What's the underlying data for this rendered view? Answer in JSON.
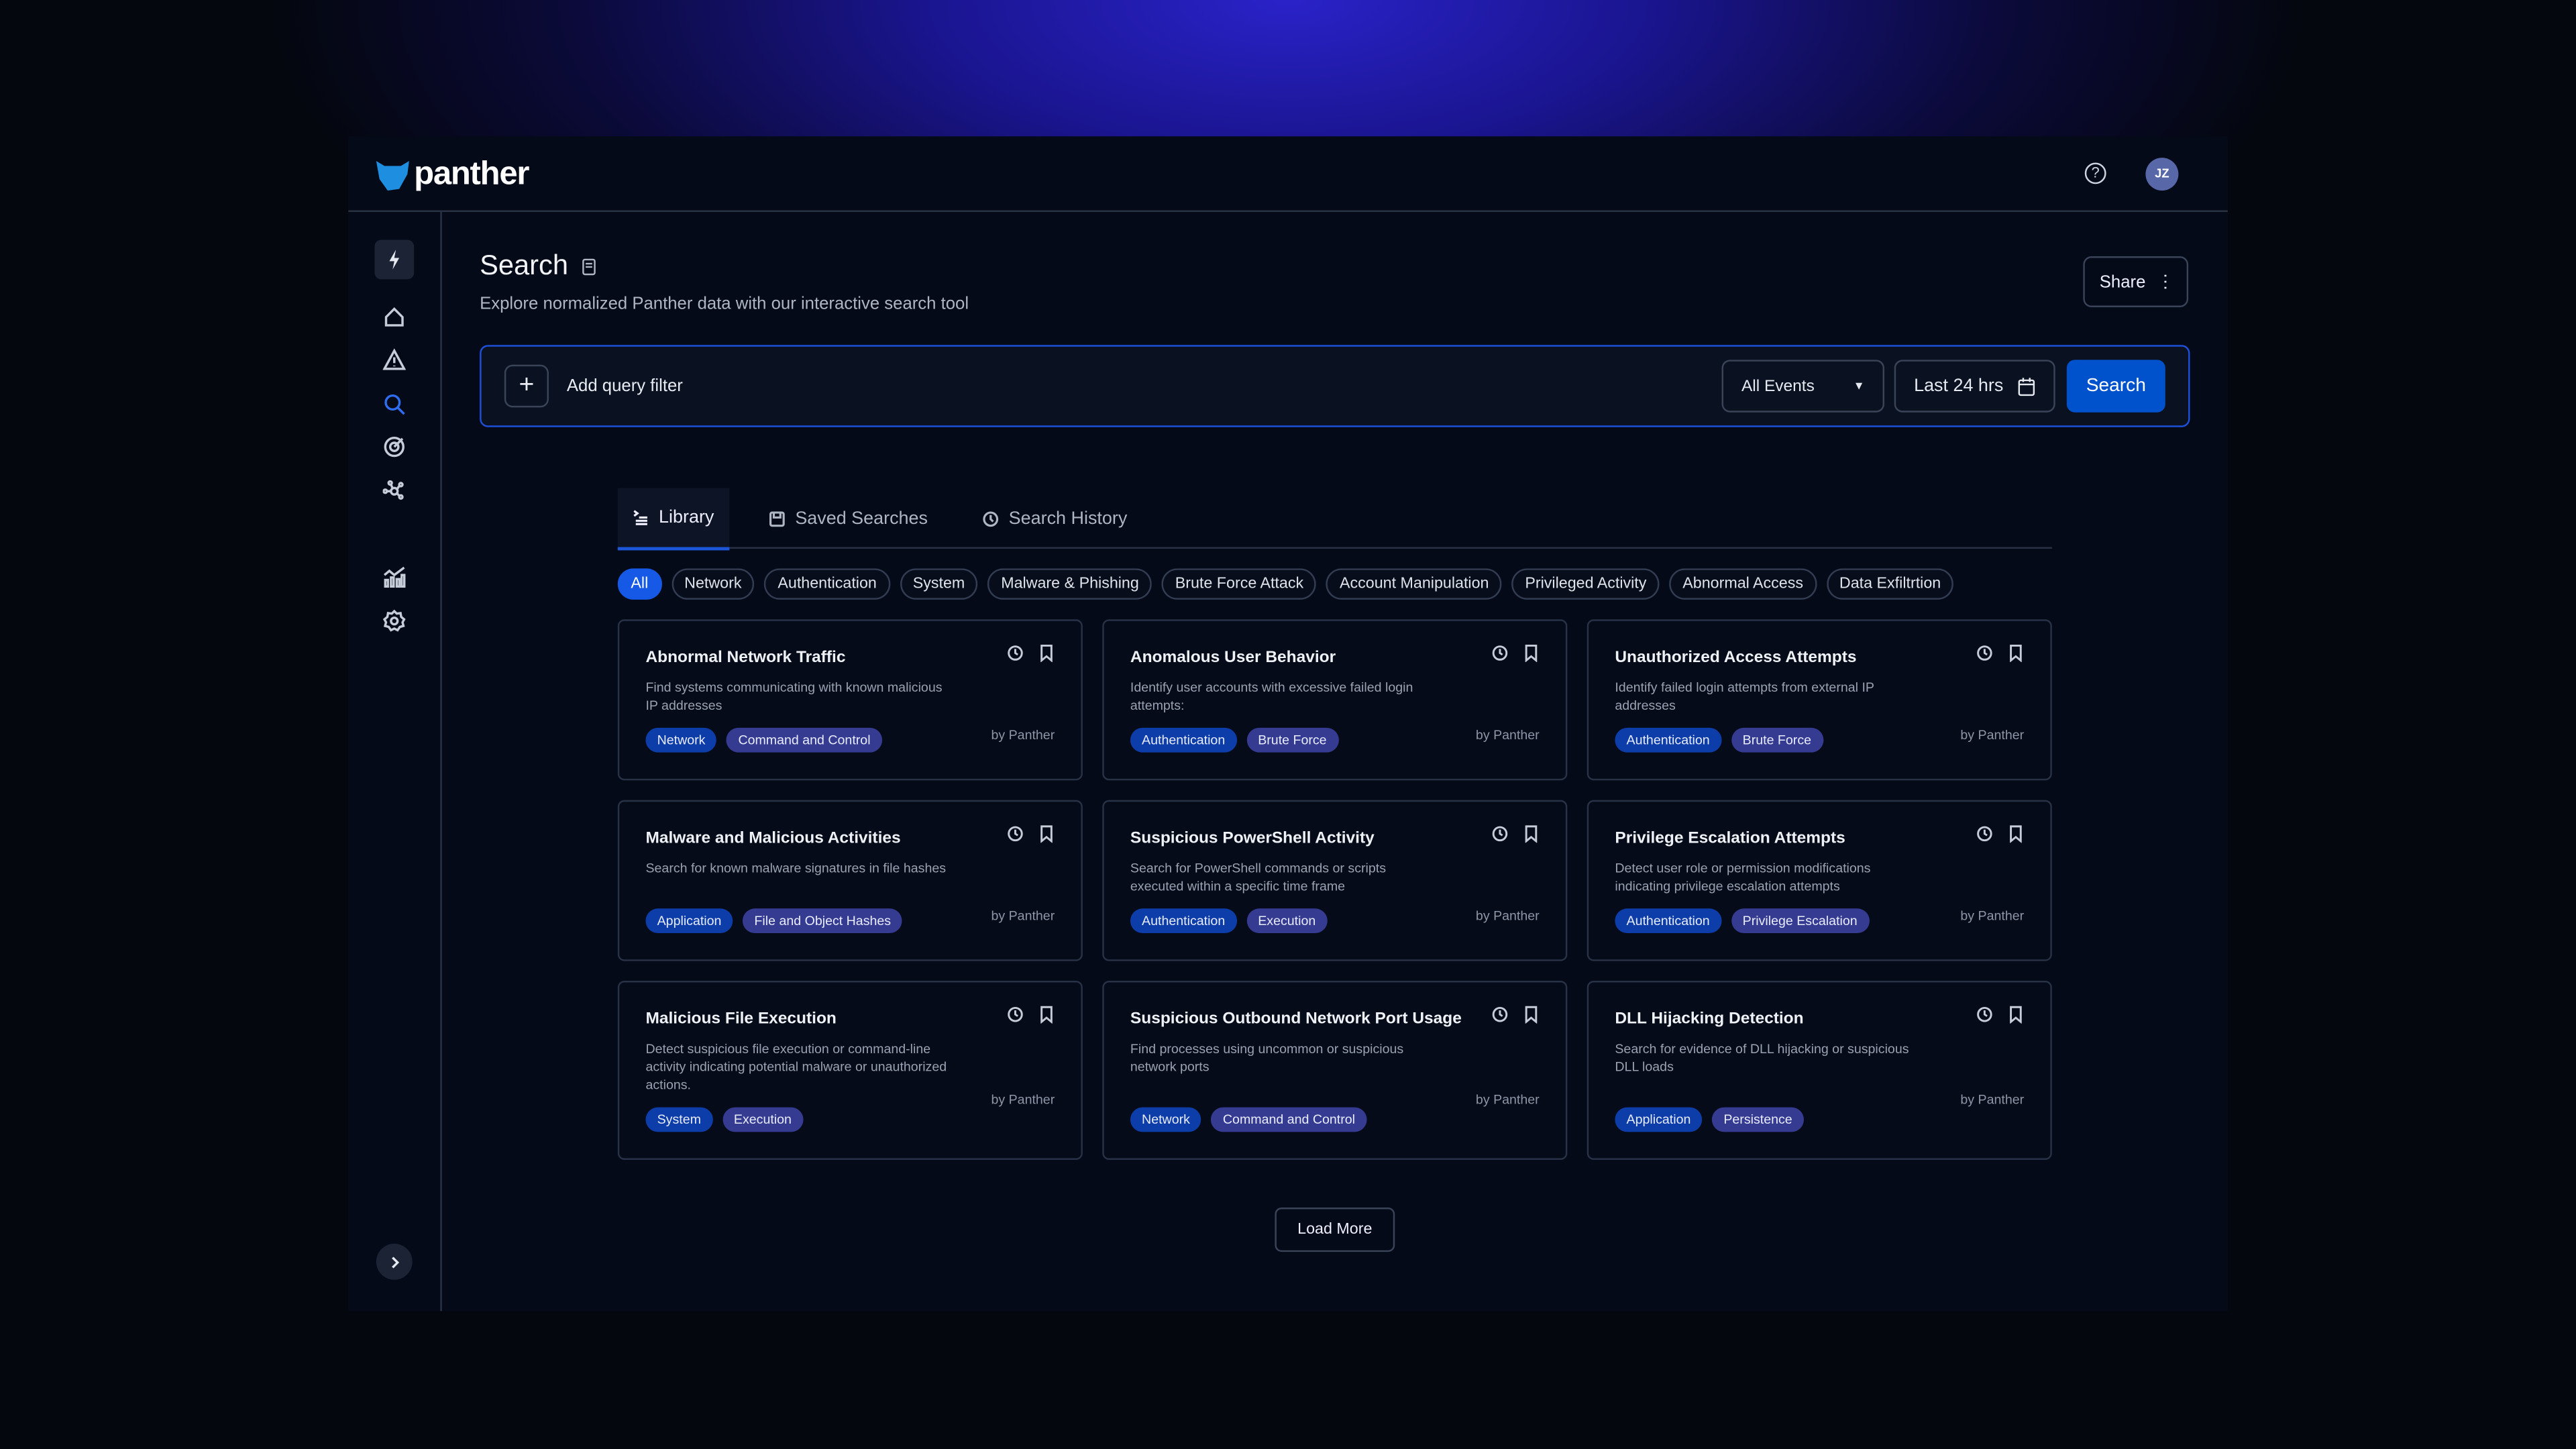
{
  "app": {
    "logo_text": "panther",
    "brand_color": "#1e8fe0",
    "accent_color": "#0052cc"
  },
  "header": {
    "help_icon": "help-circle-icon",
    "avatar_initials": "JZ"
  },
  "sidebar": {
    "items": [
      {
        "icon": "lightning-icon"
      },
      {
        "icon": "home-icon"
      },
      {
        "icon": "alert-triangle-icon"
      },
      {
        "icon": "search-icon",
        "active": true
      },
      {
        "icon": "target-icon"
      },
      {
        "icon": "network-icon"
      },
      {
        "icon": "analytics-chart-icon"
      },
      {
        "icon": "gear-icon"
      }
    ],
    "expand_icon": "chevron-right-icon"
  },
  "page": {
    "title": "Search",
    "subtitle": "Explore normalized Panther data with our interactive search tool",
    "share_label": "Share"
  },
  "query": {
    "add_filter_label": "Add query filter",
    "event_select": "All Events",
    "time_range": "Last 24 hrs",
    "search_label": "Search"
  },
  "tabs": [
    {
      "label": "Library",
      "active": true
    },
    {
      "label": "Saved Searches"
    },
    {
      "label": "Search History"
    }
  ],
  "chips": [
    "All",
    "Network",
    "Authentication",
    "System",
    "Malware & Phishing",
    "Brute Force Attack",
    "Account Manipulation",
    "Privileged Activity",
    "Abnormal Access",
    "Data Exfiltrtion"
  ],
  "active_chip": "All",
  "cards": [
    {
      "title": "Abnormal Network Traffic",
      "desc": "Find systems communicating with known malicious IP addresses",
      "tags": [
        "Network",
        "Command and Control"
      ],
      "by": "by Panther"
    },
    {
      "title": "Anomalous User Behavior",
      "desc": "Identify user accounts with excessive failed login attempts:",
      "tags": [
        "Authentication",
        "Brute Force"
      ],
      "by": "by Panther"
    },
    {
      "title": "Unauthorized Access Attempts",
      "desc": "Identify failed login attempts from external IP addresses",
      "tags": [
        "Authentication",
        "Brute Force"
      ],
      "by": "by Panther"
    },
    {
      "title": "Malware and Malicious Activities",
      "desc": "Search for known malware signatures in file hashes",
      "tags": [
        "Application",
        "File and Object Hashes"
      ],
      "by": "by Panther"
    },
    {
      "title": "Suspicious PowerShell Activity",
      "desc": "Search for PowerShell commands or scripts executed within a specific time frame",
      "tags": [
        "Authentication",
        "Execution"
      ],
      "by": "by Panther"
    },
    {
      "title": "Privilege Escalation Attempts",
      "desc": "Detect user role or permission modifications indicating privilege escalation attempts",
      "tags": [
        "Authentication",
        "Privilege Escalation"
      ],
      "by": "by Panther"
    },
    {
      "title": "Malicious File Execution",
      "desc": "Detect suspicious file execution or command-line activity indicating potential malware or unauthorized actions.",
      "tags": [
        "System",
        "Execution"
      ],
      "by": "by Panther"
    },
    {
      "title": "Suspicious Outbound Network Port Usage",
      "desc": "Find processes using uncommon or suspicious network ports",
      "tags": [
        "Network",
        "Command and Control"
      ],
      "by": "by Panther"
    },
    {
      "title": "DLL Hijacking Detection",
      "desc": "Search for evidence of DLL hijacking or suspicious DLL loads",
      "tags": [
        "Application",
        "Persistence"
      ],
      "by": "by Panther"
    }
  ],
  "load_more_label": "Load More"
}
